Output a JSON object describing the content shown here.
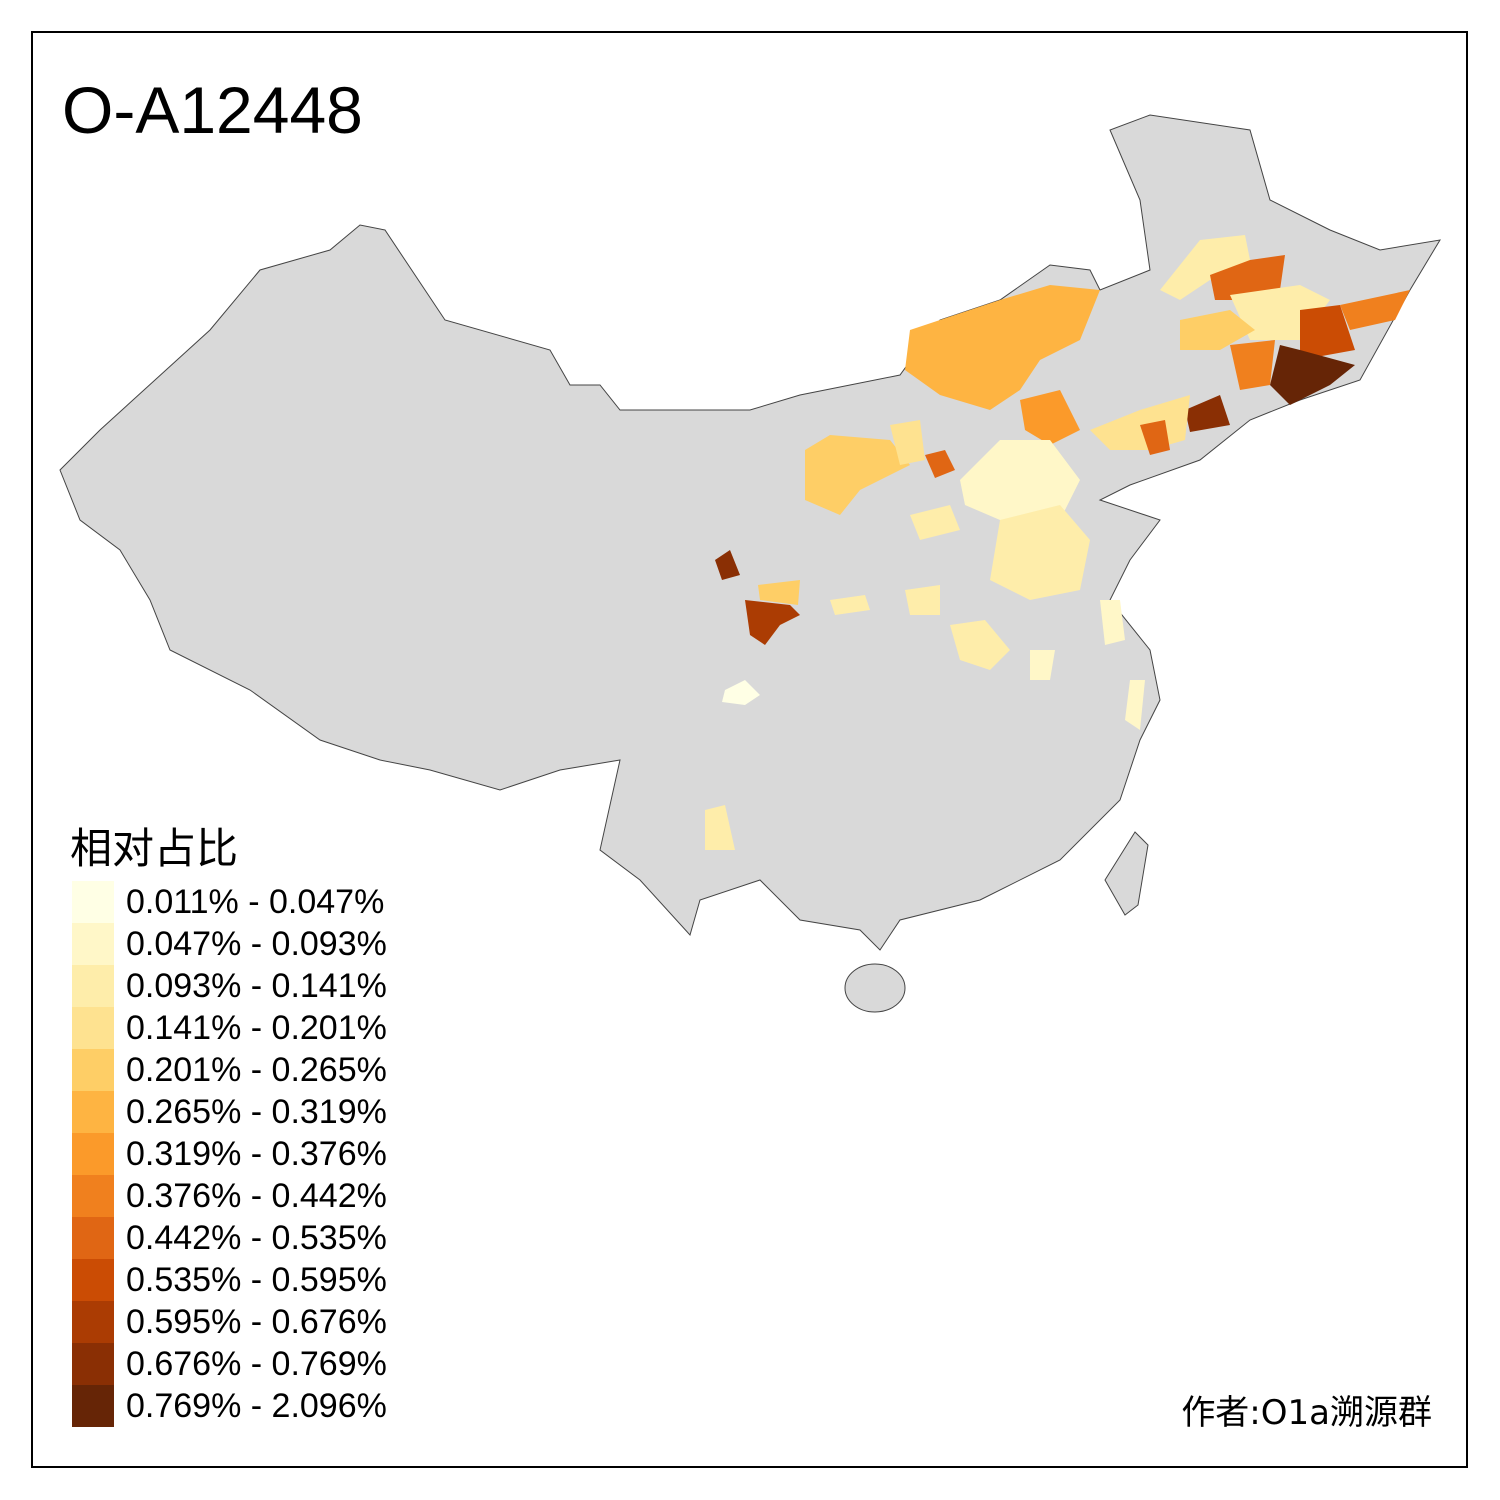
{
  "title": "O-A12448",
  "legend": {
    "title": "相对占比",
    "items": [
      {
        "label": "0.011% - 0.047%",
        "color": "#FFFFE5"
      },
      {
        "label": "0.047% - 0.093%",
        "color": "#FFF7C8"
      },
      {
        "label": "0.093% - 0.141%",
        "color": "#FEEDAA"
      },
      {
        "label": "0.141% - 0.201%",
        "color": "#FEE290"
      },
      {
        "label": "0.201% - 0.265%",
        "color": "#FECE66"
      },
      {
        "label": "0.265% - 0.319%",
        "color": "#FEB442"
      },
      {
        "label": "0.319% - 0.376%",
        "color": "#FB9A2A"
      },
      {
        "label": "0.376% - 0.442%",
        "color": "#F0801E"
      },
      {
        "label": "0.442% - 0.535%",
        "color": "#E06614"
      },
      {
        "label": "0.535% - 0.595%",
        "color": "#CB4C04"
      },
      {
        "label": "0.595% - 0.676%",
        "color": "#AB3C03"
      },
      {
        "label": "0.676% - 0.769%",
        "color": "#8A2F04"
      },
      {
        "label": "0.769% - 2.096%",
        "color": "#662506"
      }
    ]
  },
  "base_color": "#D9D9D9",
  "author": "作者:O1a溯源群"
}
